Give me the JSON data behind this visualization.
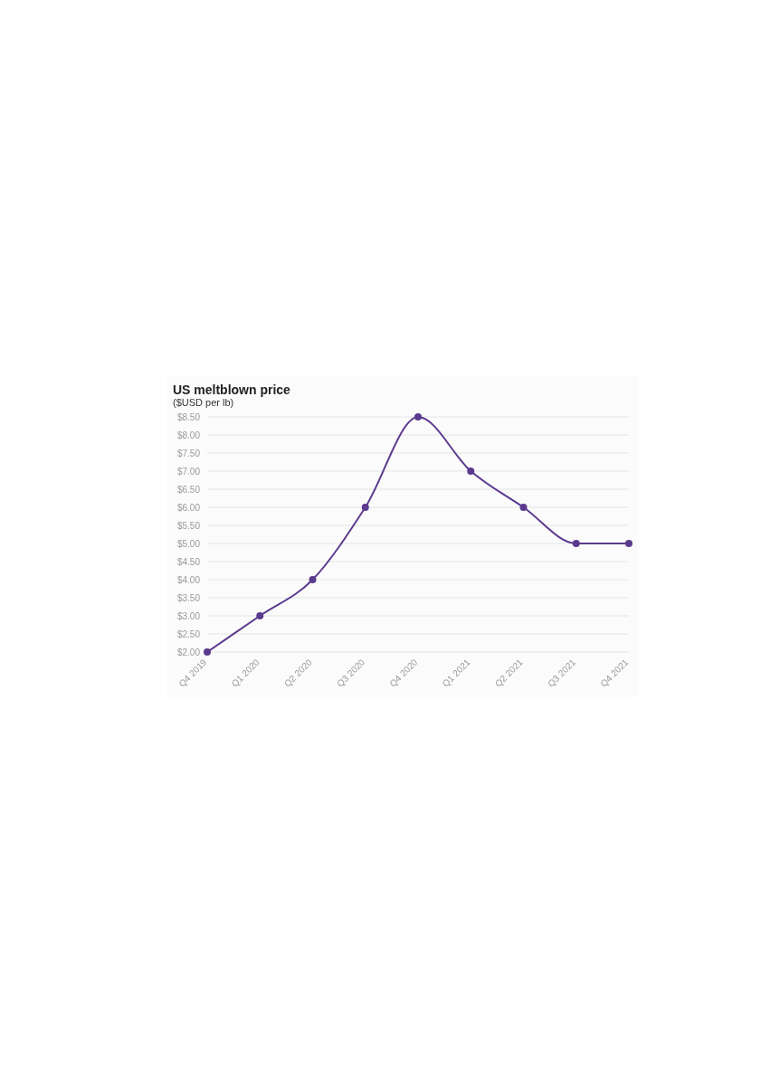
{
  "chart_data": {
    "type": "line",
    "title": "US meltblown price",
    "subtitle": "($USD per lb)",
    "categories": [
      "Q4 2019",
      "Q1 2020",
      "Q2 2020",
      "Q3 2020",
      "Q4 2020",
      "Q1 2021",
      "Q2 2021",
      "Q3 2021",
      "Q4 2021"
    ],
    "series": [
      {
        "color": "#5b3a8e",
        "values": [
          2.0,
          3.0,
          4.0,
          6.0,
          8.5,
          7.0,
          6.0,
          5.0,
          5.0
        ]
      }
    ],
    "ylim": [
      2,
      8.5
    ],
    "yticks": [
      {
        "value": 2,
        "label": "$2.00"
      },
      {
        "value": 2.5,
        "label": "$2.50"
      },
      {
        "value": 3,
        "label": "$3.00"
      },
      {
        "value": 3.5,
        "label": "$3.50"
      },
      {
        "value": 4,
        "label": "$4.00"
      },
      {
        "value": 4.5,
        "label": "$4.50"
      },
      {
        "value": 5,
        "label": "$5.00"
      },
      {
        "value": 5.5,
        "label": "$5.50"
      },
      {
        "value": 6,
        "label": "$6.00"
      },
      {
        "value": 6.5,
        "label": "$6.50"
      },
      {
        "value": 7,
        "label": "$7.00"
      },
      {
        "value": 7.5,
        "label": "$7.50"
      },
      {
        "value": 8,
        "label": "$8.00"
      },
      {
        "value": 8.5,
        "label": "$8.50"
      }
    ],
    "grid": "y",
    "marker": "circle",
    "line_style": "solid"
  }
}
